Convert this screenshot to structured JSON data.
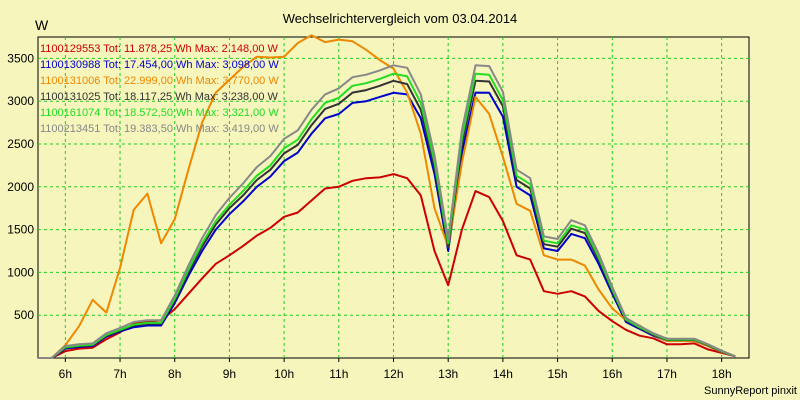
{
  "chart_data": {
    "type": "line",
    "title": "Wechselrichtervergleich vom 03.04.2014",
    "ylabel": "W",
    "xlabel": "",
    "footer": "SunnyReport pinxit",
    "xlim": [
      5.5,
      18.5
    ],
    "ylim": [
      0,
      3750
    ],
    "xticks": [
      "6h",
      "7h",
      "8h",
      "9h",
      "10h",
      "11h",
      "12h",
      "13h",
      "14h",
      "15h",
      "16h",
      "17h",
      "18h"
    ],
    "xtick_values": [
      6,
      7,
      8,
      9,
      10,
      11,
      12,
      13,
      14,
      15,
      16,
      17,
      18
    ],
    "yticks": [
      500,
      1000,
      1500,
      2000,
      2500,
      3000,
      3500
    ],
    "grid": true,
    "legend_position": "top-left",
    "series": [
      {
        "name": "1100129553",
        "label": "1100129553 Tot: 11.878,25 Wh Max: 2.148,00 W",
        "color": "#cc0000",
        "x": [
          5.5,
          5.75,
          6.0,
          6.25,
          6.5,
          6.75,
          7.0,
          7.25,
          7.5,
          7.75,
          8.0,
          8.25,
          8.5,
          8.75,
          9.0,
          9.25,
          9.5,
          9.75,
          10.0,
          10.25,
          10.5,
          10.75,
          11.0,
          11.25,
          11.5,
          11.75,
          12.0,
          12.25,
          12.5,
          12.75,
          13.0,
          13.25,
          13.5,
          13.75,
          14.0,
          14.25,
          14.5,
          14.75,
          15.0,
          15.25,
          15.5,
          15.75,
          16.0,
          16.25,
          16.5,
          16.75,
          17.0,
          17.25,
          17.5,
          17.75,
          18.0,
          18.25
        ],
        "values": [
          0,
          0,
          80,
          110,
          120,
          220,
          300,
          400,
          420,
          440,
          570,
          750,
          930,
          1100,
          1200,
          1310,
          1430,
          1520,
          1650,
          1700,
          1840,
          1980,
          2000,
          2070,
          2100,
          2110,
          2148,
          2100,
          1900,
          1250,
          850,
          1500,
          1950,
          1880,
          1600,
          1200,
          1150,
          780,
          750,
          780,
          720,
          550,
          430,
          330,
          260,
          230,
          160,
          160,
          170,
          100,
          60,
          20
        ]
      },
      {
        "name": "1100130988",
        "label": "1100130988 Tot: 17.454,00 Wh Max: 3.098,00 W",
        "color": "#0000cc",
        "x": [
          5.5,
          5.75,
          6.0,
          6.25,
          6.5,
          6.75,
          7.0,
          7.25,
          7.5,
          7.75,
          8.0,
          8.25,
          8.5,
          8.75,
          9.0,
          9.25,
          9.5,
          9.75,
          10.0,
          10.25,
          10.5,
          10.75,
          11.0,
          11.25,
          11.5,
          11.75,
          12.0,
          12.25,
          12.5,
          12.75,
          13.0,
          13.25,
          13.5,
          13.75,
          14.0,
          14.25,
          14.5,
          14.75,
          15.0,
          15.25,
          15.5,
          15.75,
          16.0,
          16.25,
          16.5,
          16.75,
          17.0,
          17.25,
          17.5,
          17.75,
          18.0,
          18.25
        ],
        "values": [
          0,
          0,
          110,
          130,
          140,
          250,
          310,
          360,
          380,
          380,
          640,
          960,
          1250,
          1500,
          1680,
          1830,
          2000,
          2120,
          2300,
          2400,
          2620,
          2800,
          2850,
          2980,
          3000,
          3050,
          3098,
          3080,
          2800,
          2150,
          1250,
          2400,
          3100,
          3098,
          2820,
          2000,
          1900,
          1280,
          1250,
          1450,
          1400,
          1100,
          750,
          420,
          340,
          260,
          200,
          200,
          200,
          140,
          70,
          20
        ]
      },
      {
        "name": "1100131006",
        "label": "1100131006 Tot: 22.999,00 Wh Max: 3.770,00 W",
        "color": "#ee8800",
        "x": [
          5.5,
          5.75,
          6.0,
          6.25,
          6.5,
          6.75,
          7.0,
          7.25,
          7.5,
          7.75,
          8.0,
          8.25,
          8.5,
          8.75,
          9.0,
          9.25,
          9.5,
          9.75,
          10.0,
          10.25,
          10.5,
          10.75,
          11.0,
          11.25,
          11.5,
          11.75,
          12.0,
          12.25,
          12.5,
          12.75,
          13.0,
          13.25,
          13.5,
          13.75,
          14.0,
          14.25,
          14.5,
          14.75,
          15.0,
          15.25,
          15.5,
          15.75,
          16.0,
          16.25,
          16.5,
          16.75,
          17.0,
          17.25,
          17.5,
          17.75,
          18.0,
          18.25
        ],
        "values": [
          0,
          0,
          150,
          370,
          680,
          530,
          1050,
          1730,
          1920,
          1340,
          1620,
          2200,
          2750,
          3100,
          3250,
          3400,
          3520,
          3510,
          3520,
          3680,
          3770,
          3690,
          3720,
          3700,
          3600,
          3480,
          3380,
          3100,
          2620,
          1750,
          1300,
          2280,
          3050,
          2850,
          2350,
          1800,
          1720,
          1200,
          1150,
          1150,
          1080,
          800,
          580,
          440,
          380,
          270,
          200,
          200,
          200,
          140,
          70,
          20
        ]
      },
      {
        "name": "1100131025",
        "label": "1100131025 Tot: 18.117,25 Wh Max: 3.238,00 W",
        "color": "#333333",
        "x": [
          5.5,
          5.75,
          6.0,
          6.25,
          6.5,
          6.75,
          7.0,
          7.25,
          7.5,
          7.75,
          8.0,
          8.25,
          8.5,
          8.75,
          9.0,
          9.25,
          9.5,
          9.75,
          10.0,
          10.25,
          10.5,
          10.75,
          11.0,
          11.25,
          11.5,
          11.75,
          12.0,
          12.25,
          12.5,
          12.75,
          13.0,
          13.25,
          13.5,
          13.75,
          14.0,
          14.25,
          14.5,
          14.75,
          15.0,
          15.25,
          15.5,
          15.75,
          16.0,
          16.25,
          16.5,
          16.75,
          17.0,
          17.25,
          17.5,
          17.75,
          18.0,
          18.25
        ],
        "values": [
          0,
          0,
          120,
          140,
          150,
          260,
          320,
          380,
          400,
          400,
          670,
          1000,
          1300,
          1560,
          1750,
          1900,
          2080,
          2200,
          2390,
          2490,
          2720,
          2910,
          2970,
          3100,
          3130,
          3180,
          3238,
          3200,
          2900,
          2230,
          1300,
          2500,
          3238,
          3230,
          2940,
          2080,
          1980,
          1330,
          1300,
          1510,
          1460,
          1150,
          780,
          440,
          350,
          270,
          210,
          210,
          210,
          150,
          75,
          20
        ]
      },
      {
        "name": "1100161074",
        "label": "1100161074 Tot: 18.572,50 Wh Max: 3.321,00 W",
        "color": "#22dd22",
        "x": [
          5.5,
          5.75,
          6.0,
          6.25,
          6.5,
          6.75,
          7.0,
          7.25,
          7.5,
          7.75,
          8.0,
          8.25,
          8.5,
          8.75,
          9.0,
          9.25,
          9.5,
          9.75,
          10.0,
          10.25,
          10.5,
          10.75,
          11.0,
          11.25,
          11.5,
          11.75,
          12.0,
          12.25,
          12.5,
          12.75,
          13.0,
          13.25,
          13.5,
          13.75,
          14.0,
          14.25,
          14.5,
          14.75,
          15.0,
          15.25,
          15.5,
          15.75,
          16.0,
          16.25,
          16.5,
          16.75,
          17.0,
          17.25,
          17.5,
          17.75,
          18.0,
          18.25
        ],
        "values": [
          0,
          0,
          125,
          145,
          155,
          270,
          330,
          390,
          410,
          410,
          690,
          1030,
          1340,
          1600,
          1790,
          1950,
          2130,
          2250,
          2450,
          2550,
          2790,
          2980,
          3040,
          3180,
          3210,
          3260,
          3321,
          3290,
          2980,
          2290,
          1340,
          2570,
          3321,
          3310,
          3010,
          2130,
          2030,
          1370,
          1340,
          1550,
          1500,
          1180,
          800,
          450,
          360,
          280,
          215,
          215,
          215,
          155,
          80,
          20
        ]
      },
      {
        "name": "1100213451",
        "label": "1100213451 Tot: 19.383,50 Wh Max: 3.419,00 W",
        "color": "#888888",
        "x": [
          5.5,
          5.75,
          6.0,
          6.25,
          6.5,
          6.75,
          7.0,
          7.25,
          7.5,
          7.75,
          8.0,
          8.25,
          8.5,
          8.75,
          9.0,
          9.25,
          9.5,
          9.75,
          10.0,
          10.25,
          10.5,
          10.75,
          11.0,
          11.25,
          11.5,
          11.75,
          12.0,
          12.25,
          12.5,
          12.75,
          13.0,
          13.25,
          13.5,
          13.75,
          14.0,
          14.25,
          14.5,
          14.75,
          15.0,
          15.25,
          15.5,
          15.75,
          16.0,
          16.25,
          16.5,
          16.75,
          17.0,
          17.25,
          17.5,
          17.75,
          18.0,
          18.25
        ],
        "values": [
          0,
          0,
          140,
          160,
          170,
          290,
          350,
          420,
          440,
          440,
          730,
          1080,
          1400,
          1670,
          1870,
          2040,
          2230,
          2360,
          2560,
          2660,
          2900,
          3080,
          3150,
          3280,
          3310,
          3360,
          3419,
          3390,
          3080,
          2370,
          1390,
          2660,
          3419,
          3410,
          3110,
          2200,
          2100,
          1420,
          1390,
          1610,
          1550,
          1220,
          830,
          470,
          375,
          290,
          225,
          225,
          225,
          160,
          85,
          20
        ]
      }
    ]
  }
}
